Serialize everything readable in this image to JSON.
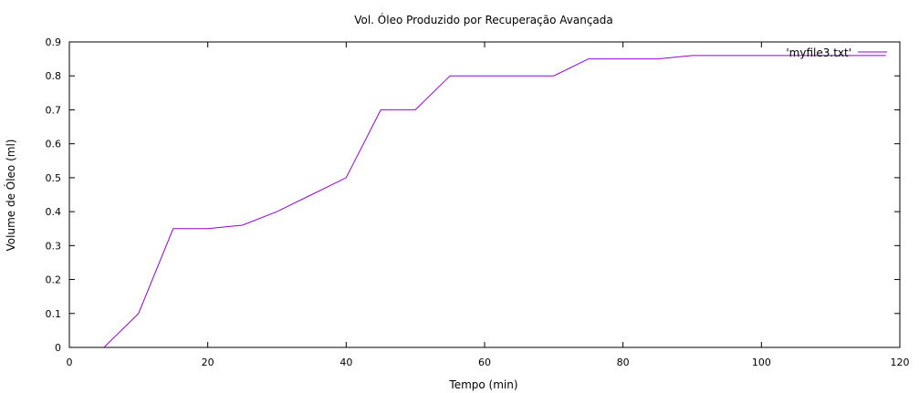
{
  "chart_data": {
    "type": "line",
    "title": "Vol. Óleo Produzido por Recuperação Avançada",
    "xlabel": "Tempo (min)",
    "ylabel": "Volume de Óleo (ml)",
    "xlim": [
      0,
      120
    ],
    "ylim": [
      0,
      0.9
    ],
    "xticks": [
      "0",
      "20",
      "40",
      "60",
      "80",
      "100",
      "120"
    ],
    "yticks": [
      "0",
      "0.1",
      "0.2",
      "0.3",
      "0.4",
      "0.5",
      "0.6",
      "0.7",
      "0.8",
      "0.9"
    ],
    "grid": false,
    "legend_position": "top-right",
    "series": [
      {
        "name": "'myfile3.txt'",
        "color": "#9400d3",
        "x": [
          5,
          10,
          15,
          20,
          25,
          30,
          35,
          40,
          45,
          50,
          55,
          60,
          65,
          70,
          75,
          80,
          85,
          90,
          95,
          100,
          105,
          110,
          115,
          118
        ],
        "y": [
          0,
          0.1,
          0.35,
          0.35,
          0.36,
          0.4,
          0.45,
          0.5,
          0.7,
          0.7,
          0.8,
          0.8,
          0.8,
          0.8,
          0.85,
          0.85,
          0.85,
          0.86,
          0.86,
          0.86,
          0.86,
          0.86,
          0.86,
          0.86
        ]
      }
    ]
  }
}
